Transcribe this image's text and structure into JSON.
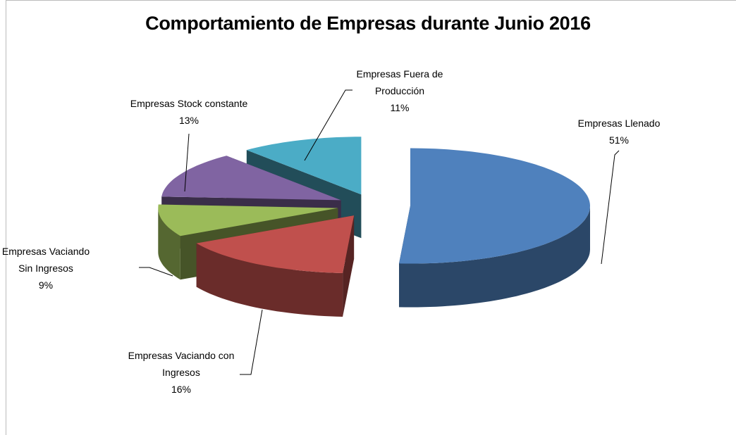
{
  "chart_data": {
    "type": "pie3d",
    "title": "Comportamiento de Empresas durante Junio 2016",
    "categories": [
      "Empresas Llenado",
      "Empresas Vaciando con Ingresos",
      "Empresas Vaciando Sin Ingresos",
      "Empresas Stock constante",
      "Empresas Fuera de Producción"
    ],
    "values": [
      51,
      16,
      9,
      13,
      11
    ],
    "value_labels": [
      "51%",
      "16%",
      "9%",
      "13%",
      "11%"
    ],
    "colors": [
      "#4f81bd",
      "#c0504d",
      "#9bbb59",
      "#8064a2",
      "#4bacc6"
    ]
  }
}
